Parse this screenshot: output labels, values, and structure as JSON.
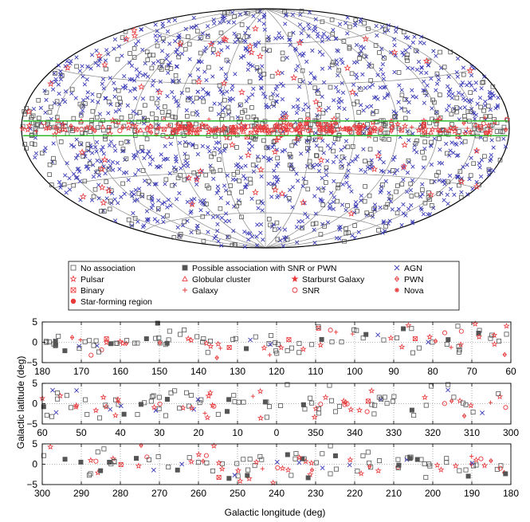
{
  "chart_data": [
    {
      "type": "scatter",
      "projection": "aitoff-hammer all-sky, galactic coordinates",
      "grid": true,
      "highlight_band": "|b| < 5 deg",
      "highlight_color": "#2db82d",
      "colors": {
        "associated": "#e8383a",
        "agn": "#3a3ab8",
        "unassociated": "#555555",
        "outline": "#000000"
      },
      "source_counts_estimate": {
        "agn": 1100,
        "no_association": 600,
        "galactic_plane_red": 260
      }
    }
  ],
  "legend": {
    "rows": [
      [
        {
          "marker": "square-open",
          "color": "#555555",
          "label": "No association"
        },
        {
          "marker": "square-filled",
          "color": "#555555",
          "label": "Possible association with SNR or PWN"
        },
        {
          "marker": "x",
          "color": "#3a3ab8",
          "label": "AGN"
        }
      ],
      [
        {
          "marker": "star-open",
          "color": "#e8383a",
          "label": "Pulsar"
        },
        {
          "marker": "triangle-open",
          "color": "#e8383a",
          "label": "Globular cluster"
        },
        {
          "marker": "star-filled",
          "color": "#e8383a",
          "label": "Starburst Galaxy"
        },
        {
          "marker": "diamond",
          "color": "#e8383a",
          "label": "PWN"
        }
      ],
      [
        {
          "marker": "square-x",
          "color": "#e8383a",
          "label": "Binary"
        },
        {
          "marker": "plus",
          "color": "#e8383a",
          "label": "Galaxy"
        },
        {
          "marker": "circle-open",
          "color": "#e8383a",
          "label": "SNR"
        },
        {
          "marker": "asterisk",
          "color": "#e8383a",
          "label": "Nova"
        }
      ],
      [
        {
          "marker": "circle-filled",
          "color": "#e8383a",
          "label": "Star-forming region"
        }
      ]
    ]
  },
  "strips": [
    {
      "xlim": [
        180,
        60
      ],
      "x_ticks": [
        "180",
        "170",
        "160",
        "150",
        "140",
        "130",
        "120",
        "110",
        "100",
        "90",
        "80",
        "70",
        "60"
      ],
      "ylim": [
        -5,
        5
      ],
      "y_ticks": [
        "5",
        "0",
        "−5"
      ]
    },
    {
      "xlim": [
        60,
        -60
      ],
      "x_ticks": [
        "60",
        "50",
        "40",
        "30",
        "20",
        "10",
        "0",
        "350",
        "340",
        "330",
        "320",
        "310",
        "300"
      ],
      "ylim": [
        -5,
        5
      ],
      "y_ticks": [
        "5",
        "0",
        "−5"
      ]
    },
    {
      "xlim": [
        300,
        180
      ],
      "x_ticks": [
        "300",
        "290",
        "280",
        "270",
        "260",
        "250",
        "240",
        "230",
        "220",
        "210",
        "200",
        "190",
        "180"
      ],
      "ylim": [
        -5,
        5
      ],
      "y_ticks": [
        "5",
        "0",
        "−5"
      ]
    }
  ],
  "axes": {
    "ylabel": "Galactic latitude (deg)",
    "xlabel": "Galactic longitude (deg)"
  }
}
